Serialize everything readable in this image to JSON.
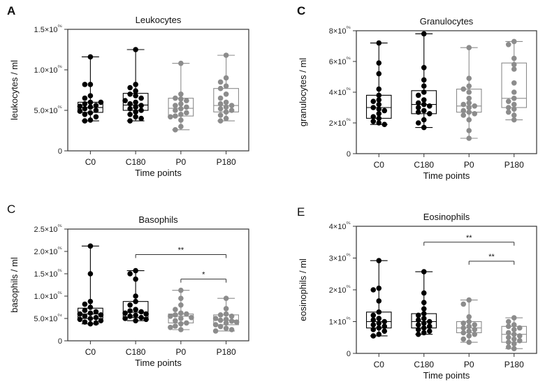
{
  "figure": {
    "panel_letters": [
      "A",
      "C",
      "C",
      "E"
    ]
  },
  "chart_data": [
    {
      "id": "leukocytes",
      "type": "boxplot",
      "title": "Leukocytes",
      "ylabel": "leukocytes / ml",
      "xlabel": "Time points",
      "categories": [
        "C0",
        "C180",
        "P0",
        "P180"
      ],
      "group_colors": [
        "#000000",
        "#000000",
        "#8c8c8c",
        "#8c8c8c"
      ],
      "ylim": [
        0,
        1500000
      ],
      "yticks": [
        0,
        500000,
        1000000,
        1500000
      ],
      "ytick_labels": [
        "0",
        "5.0×10⁰⁵",
        "1.0×10⁰⁶",
        "1.5×10⁰⁶"
      ],
      "boxes": [
        {
          "min": 370000,
          "q1": 475000,
          "median": 535000,
          "q3": 600000,
          "max": 1160000
        },
        {
          "min": 370000,
          "q1": 500000,
          "median": 565000,
          "q3": 710000,
          "max": 1250000
        },
        {
          "min": 260000,
          "q1": 430000,
          "median": 525000,
          "q3": 650000,
          "max": 1080000
        },
        {
          "min": 370000,
          "q1": 480000,
          "median": 560000,
          "q3": 770000,
          "max": 1180000
        }
      ],
      "points": [
        [
          1160000,
          820000,
          820000,
          680000,
          650000,
          600000,
          580000,
          560000,
          550000,
          540000,
          520000,
          500000,
          490000,
          470000,
          450000,
          420000,
          380000,
          370000,
          600000
        ],
        [
          1250000,
          820000,
          780000,
          740000,
          700000,
          680000,
          650000,
          600000,
          580000,
          560000,
          540000,
          520000,
          500000,
          480000,
          450000,
          420000,
          400000,
          370000,
          620000
        ],
        [
          1080000,
          700000,
          650000,
          640000,
          620000,
          580000,
          560000,
          540000,
          520000,
          500000,
          470000,
          450000,
          430000,
          420000,
          380000,
          300000,
          260000
        ],
        [
          1180000,
          900000,
          850000,
          800000,
          770000,
          700000,
          650000,
          600000,
          580000,
          560000,
          540000,
          520000,
          500000,
          480000,
          440000,
          400000,
          370000
        ]
      ],
      "annotations": []
    },
    {
      "id": "granulocytes",
      "type": "boxplot",
      "title": "Granulocytes",
      "ylabel": "granulocytes / ml",
      "xlabel": "Time points",
      "categories": [
        "C0",
        "C180",
        "P0",
        "P180"
      ],
      "group_colors": [
        "#000000",
        "#000000",
        "#8c8c8c",
        "#8c8c8c"
      ],
      "ylim": [
        0,
        8000000
      ],
      "yticks": [
        0,
        2000000,
        4000000,
        6000000,
        8000000
      ],
      "ytick_labels": [
        "0",
        "2×10⁰⁶",
        "4×10⁰⁶",
        "6×10⁰⁶",
        "8×10⁰⁶"
      ],
      "boxes": [
        {
          "min": 1900000,
          "q1": 2300000,
          "median": 3000000,
          "q3": 3800000,
          "max": 7200000
        },
        {
          "min": 1700000,
          "q1": 2600000,
          "median": 3200000,
          "q3": 4100000,
          "max": 7800000
        },
        {
          "min": 1000000,
          "q1": 2700000,
          "median": 3100000,
          "q3": 4200000,
          "max": 6900000
        },
        {
          "min": 2200000,
          "q1": 3000000,
          "median": 3600000,
          "q3": 5900000,
          "max": 7300000
        }
      ],
      "points": [
        [
          7200000,
          5900000,
          5200000,
          4200000,
          3800000,
          3500000,
          3400000,
          3200000,
          3000000,
          2900000,
          2800000,
          2600000,
          2400000,
          2300000,
          2100000,
          2000000,
          1900000
        ],
        [
          7800000,
          5600000,
          4800000,
          4400000,
          4000000,
          3800000,
          3500000,
          3300000,
          3200000,
          3100000,
          3000000,
          2800000,
          2700000,
          2600000,
          2200000,
          2000000,
          1700000
        ],
        [
          6900000,
          4900000,
          4400000,
          4200000,
          4000000,
          3600000,
          3300000,
          3200000,
          3100000,
          3000000,
          2800000,
          2700000,
          2600000,
          2500000,
          2200000,
          1500000,
          1000000
        ],
        [
          7300000,
          7100000,
          6200000,
          5800000,
          5500000,
          4600000,
          4000000,
          3600000,
          3400000,
          3200000,
          3000000,
          2900000,
          2700000,
          2500000,
          2200000
        ]
      ],
      "annotations": []
    },
    {
      "id": "basophils",
      "type": "boxplot",
      "title": "Basophils",
      "ylabel": "basophils / ml",
      "xlabel": "Time points",
      "categories": [
        "C0",
        "C180",
        "P0",
        "P180"
      ],
      "group_colors": [
        "#000000",
        "#000000",
        "#8c8c8c",
        "#8c8c8c"
      ],
      "ylim": [
        0,
        250000
      ],
      "yticks": [
        0,
        50000,
        100000,
        150000,
        200000,
        250000
      ],
      "ytick_labels": [
        "0",
        "5.0×10⁰⁴",
        "1.0×10⁰⁵",
        "1.5×10⁰⁵",
        "2.0×10⁰⁵",
        "2.5×10⁰⁵"
      ],
      "boxes": [
        {
          "min": 38000,
          "q1": 50000,
          "median": 60000,
          "q3": 73000,
          "max": 212000
        },
        {
          "min": 45000,
          "q1": 52000,
          "median": 64000,
          "q3": 88000,
          "max": 157000
        },
        {
          "min": 25000,
          "q1": 40000,
          "median": 55000,
          "q3": 60000,
          "max": 113000
        },
        {
          "min": 22000,
          "q1": 36000,
          "median": 46000,
          "q3": 58000,
          "max": 95000
        }
      ],
      "points": [
        [
          212000,
          150000,
          88000,
          82000,
          75000,
          68000,
          65000,
          62000,
          60000,
          58000,
          55000,
          52000,
          50000,
          48000,
          45000,
          42000,
          40000,
          38000
        ],
        [
          157000,
          150000,
          138000,
          100000,
          88000,
          80000,
          70000,
          67000,
          65000,
          62000,
          60000,
          57000,
          55000,
          52000,
          50000,
          48000,
          45000
        ],
        [
          113000,
          95000,
          80000,
          70000,
          62000,
          60000,
          58000,
          55000,
          52000,
          50000,
          45000,
          40000,
          38000,
          33000,
          30000,
          25000
        ],
        [
          95000,
          72000,
          60000,
          58000,
          55000,
          50000,
          48000,
          46000,
          44000,
          42000,
          40000,
          36000,
          32000,
          28000,
          25000,
          22000
        ]
      ],
      "annotations": [
        {
          "from": 1,
          "to": 3,
          "value": 193000,
          "label": "**"
        },
        {
          "from": 2,
          "to": 3,
          "value": 138000,
          "label": "*"
        }
      ]
    },
    {
      "id": "eosinophils",
      "type": "boxplot",
      "title": "Eosinophils",
      "ylabel": "eosinophils / ml",
      "xlabel": "Time points",
      "categories": [
        "C0",
        "C180",
        "P0",
        "P180"
      ],
      "group_colors": [
        "#000000",
        "#000000",
        "#8c8c8c",
        "#8c8c8c"
      ],
      "ylim": [
        0,
        400000
      ],
      "yticks": [
        0,
        100000,
        200000,
        300000,
        400000
      ],
      "ytick_labels": [
        "0",
        "1×10⁰⁵",
        "2×10⁰⁵",
        "3×10⁰⁵",
        "4×10⁰⁵"
      ],
      "boxes": [
        {
          "min": 55000,
          "q1": 80000,
          "median": 100000,
          "q3": 130000,
          "max": 292000
        },
        {
          "min": 60000,
          "q1": 80000,
          "median": 100000,
          "q3": 125000,
          "max": 257000
        },
        {
          "min": 35000,
          "q1": 65000,
          "median": 80000,
          "q3": 100000,
          "max": 168000
        },
        {
          "min": 15000,
          "q1": 35000,
          "median": 60000,
          "q3": 85000,
          "max": 112000
        }
      ],
      "points": [
        [
          292000,
          205000,
          200000,
          165000,
          130000,
          120000,
          110000,
          105000,
          100000,
          95000,
          90000,
          85000,
          80000,
          75000,
          70000,
          60000,
          55000
        ],
        [
          257000,
          190000,
          160000,
          140000,
          125000,
          120000,
          110000,
          105000,
          100000,
          95000,
          90000,
          85000,
          80000,
          75000,
          70000,
          65000,
          60000
        ],
        [
          168000,
          155000,
          115000,
          100000,
          95000,
          90000,
          85000,
          80000,
          75000,
          70000,
          65000,
          60000,
          55000,
          45000,
          35000
        ],
        [
          112000,
          100000,
          90000,
          85000,
          80000,
          75000,
          65000,
          60000,
          55000,
          50000,
          45000,
          40000,
          35000,
          30000,
          20000,
          15000
        ]
      ],
      "annotations": [
        {
          "from": 1,
          "to": 3,
          "value": 350000,
          "label": "**"
        },
        {
          "from": 2,
          "to": 3,
          "value": 290000,
          "label": "**"
        }
      ]
    }
  ]
}
